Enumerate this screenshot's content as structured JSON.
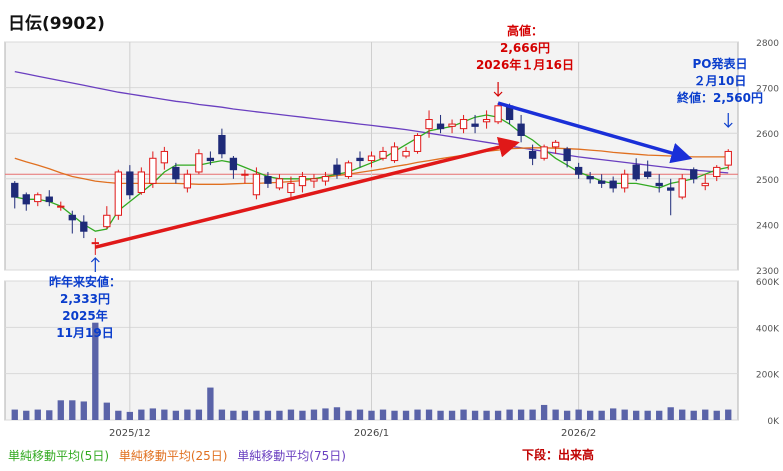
{
  "title": "日伝(9902)",
  "legend": {
    "ma5": {
      "label": "単純移動平均(5日)",
      "color": "#33aa22"
    },
    "ma25": {
      "label": "単純移動平均(25日)",
      "color": "#e07020"
    },
    "ma75": {
      "label": "単純移動平均(75日)",
      "color": "#6a3fc0"
    }
  },
  "volume_note": "下段：出来高",
  "annotations": {
    "high": {
      "line1": "高値：",
      "line2": "2,666円",
      "line3": "2026年１月16日"
    },
    "low": {
      "line1": "昨年来安値：",
      "line2": "2,333円",
      "line3": "2025年",
      "line4": "11月19日"
    },
    "po": {
      "line1": "PO発表日",
      "line2": "２月10日",
      "line3": "終値：2,560円"
    }
  },
  "chart_data": [
    {
      "type": "candlestick",
      "ylim": [
        2300,
        2800
      ],
      "yticks": [
        2300,
        2400,
        2500,
        2600,
        2700,
        2800
      ],
      "xtick_labels": [
        "2025/12",
        "2026/1",
        "2026/2"
      ],
      "xtick_index": [
        10,
        31,
        49
      ],
      "reference_price": 2510,
      "ohlc": [
        [
          2490,
          2495,
          2435,
          2460
        ],
        [
          2465,
          2470,
          2430,
          2445
        ],
        [
          2450,
          2470,
          2440,
          2465
        ],
        [
          2460,
          2475,
          2440,
          2450
        ],
        [
          2440,
          2450,
          2430,
          2440
        ],
        [
          2420,
          2430,
          2380,
          2410
        ],
        [
          2405,
          2420,
          2370,
          2385
        ],
        [
          2360,
          2370,
          2333,
          2360
        ],
        [
          2395,
          2440,
          2390,
          2420
        ],
        [
          2420,
          2520,
          2410,
          2515
        ],
        [
          2515,
          2530,
          2455,
          2465
        ],
        [
          2470,
          2525,
          2465,
          2515
        ],
        [
          2490,
          2560,
          2480,
          2545
        ],
        [
          2535,
          2570,
          2520,
          2560
        ],
        [
          2525,
          2535,
          2490,
          2500
        ],
        [
          2480,
          2520,
          2470,
          2510
        ],
        [
          2515,
          2565,
          2510,
          2555
        ],
        [
          2545,
          2560,
          2530,
          2540
        ],
        [
          2595,
          2610,
          2545,
          2555
        ],
        [
          2545,
          2550,
          2500,
          2520
        ],
        [
          2510,
          2520,
          2490,
          2510
        ],
        [
          2465,
          2525,
          2455,
          2510
        ],
        [
          2505,
          2515,
          2480,
          2490
        ],
        [
          2480,
          2510,
          2475,
          2500
        ],
        [
          2470,
          2505,
          2460,
          2490
        ],
        [
          2485,
          2515,
          2470,
          2505
        ],
        [
          2495,
          2510,
          2480,
          2500
        ],
        [
          2495,
          2515,
          2485,
          2505
        ],
        [
          2530,
          2545,
          2500,
          2510
        ],
        [
          2505,
          2540,
          2500,
          2535
        ],
        [
          2545,
          2560,
          2525,
          2540
        ],
        [
          2540,
          2560,
          2525,
          2550
        ],
        [
          2545,
          2570,
          2540,
          2560
        ],
        [
          2540,
          2580,
          2535,
          2570
        ],
        [
          2550,
          2570,
          2545,
          2560
        ],
        [
          2560,
          2600,
          2555,
          2595
        ],
        [
          2610,
          2650,
          2590,
          2630
        ],
        [
          2620,
          2640,
          2600,
          2610
        ],
        [
          2615,
          2630,
          2600,
          2620
        ],
        [
          2610,
          2640,
          2600,
          2630
        ],
        [
          2620,
          2640,
          2600,
          2615
        ],
        [
          2625,
          2650,
          2610,
          2630
        ],
        [
          2625,
          2666,
          2620,
          2660
        ],
        [
          2660,
          2665,
          2620,
          2630
        ],
        [
          2620,
          2640,
          2580,
          2595
        ],
        [
          2560,
          2575,
          2530,
          2545
        ],
        [
          2545,
          2575,
          2540,
          2570
        ],
        [
          2570,
          2585,
          2555,
          2580
        ],
        [
          2565,
          2570,
          2525,
          2540
        ],
        [
          2525,
          2535,
          2500,
          2510
        ],
        [
          2505,
          2515,
          2490,
          2500
        ],
        [
          2495,
          2510,
          2480,
          2490
        ],
        [
          2495,
          2505,
          2470,
          2480
        ],
        [
          2480,
          2520,
          2470,
          2510
        ],
        [
          2530,
          2545,
          2495,
          2500
        ],
        [
          2515,
          2540,
          2500,
          2505
        ],
        [
          2490,
          2510,
          2470,
          2485
        ],
        [
          2480,
          2500,
          2420,
          2475
        ],
        [
          2460,
          2510,
          2455,
          2500
        ],
        [
          2520,
          2525,
          2490,
          2500
        ],
        [
          2485,
          2510,
          2475,
          2490
        ],
        [
          2505,
          2530,
          2495,
          2525
        ],
        [
          2530,
          2565,
          2520,
          2560
        ]
      ],
      "ma5": [
        2460,
        2455,
        2455,
        2450,
        2440,
        2420,
        2400,
        2385,
        2390,
        2430,
        2450,
        2470,
        2490,
        2515,
        2530,
        2530,
        2530,
        2535,
        2540,
        2535,
        2525,
        2515,
        2505,
        2500,
        2500,
        2500,
        2500,
        2505,
        2510,
        2515,
        2525,
        2535,
        2545,
        2560,
        2575,
        2590,
        2605,
        2610,
        2615,
        2625,
        2635,
        2640,
        2635,
        2620,
        2600,
        2585,
        2565,
        2545,
        2530,
        2515,
        2505,
        2495,
        2490,
        2490,
        2490,
        2485,
        2480,
        2490,
        2495,
        2500,
        2510,
        2520,
        2525
      ],
      "ma25": [
        2545,
        2537,
        2530,
        2522,
        2513,
        2505,
        2500,
        2495,
        2492,
        2490,
        2490,
        2490,
        2490,
        2490,
        2490,
        2489,
        2488,
        2488,
        2488,
        2489,
        2490,
        2490,
        2491,
        2492,
        2494,
        2496,
        2500,
        2503,
        2507,
        2510,
        2514,
        2518,
        2522,
        2527,
        2531,
        2536,
        2540,
        2544,
        2548,
        2552,
        2556,
        2560,
        2563,
        2566,
        2567,
        2568,
        2568,
        2567,
        2566,
        2565,
        2563,
        2561,
        2558,
        2556,
        2554,
        2552,
        2551,
        2550,
        2549,
        2548,
        2548,
        2548,
        2548
      ],
      "ma75": [
        2735,
        2730,
        2725,
        2720,
        2715,
        2710,
        2705,
        2700,
        2695,
        2690,
        2686,
        2682,
        2678,
        2674,
        2670,
        2667,
        2663,
        2660,
        2657,
        2653,
        2650,
        2647,
        2644,
        2641,
        2638,
        2635,
        2632,
        2629,
        2626,
        2623,
        2620,
        2617,
        2614,
        2611,
        2608,
        2604,
        2600,
        2596,
        2592,
        2588,
        2584,
        2580,
        2576,
        2572,
        2568,
        2564,
        2560,
        2556,
        2552,
        2548,
        2545,
        2542,
        2539,
        2536,
        2533,
        2530,
        2527,
        2524,
        2521,
        2519,
        2517,
        2515,
        2513
      ],
      "trend_lines": [
        {
          "color": "#e01818",
          "from": [
            7,
            2350
          ],
          "to": [
            43,
            2575
          ]
        },
        {
          "color": "#1a2fd8",
          "from": [
            42,
            2666
          ],
          "to": [
            58,
            2550
          ]
        }
      ]
    },
    {
      "type": "bar",
      "name": "出来高",
      "ylim": [
        0,
        600
      ],
      "yticks": [
        0,
        200,
        400,
        600
      ],
      "ytick_labels": [
        "0K",
        "200K",
        "400K",
        "600K"
      ],
      "values": [
        45,
        40,
        45,
        42,
        85,
        85,
        80,
        420,
        75,
        40,
        35,
        45,
        50,
        45,
        40,
        45,
        45,
        140,
        45,
        40,
        40,
        40,
        40,
        40,
        45,
        40,
        45,
        50,
        55,
        40,
        45,
        40,
        45,
        40,
        40,
        45,
        45,
        40,
        40,
        45,
        40,
        40,
        40,
        45,
        45,
        45,
        65,
        45,
        40,
        45,
        40,
        40,
        50,
        45,
        40,
        40,
        40,
        55,
        45,
        40,
        45,
        40,
        45
      ]
    }
  ]
}
